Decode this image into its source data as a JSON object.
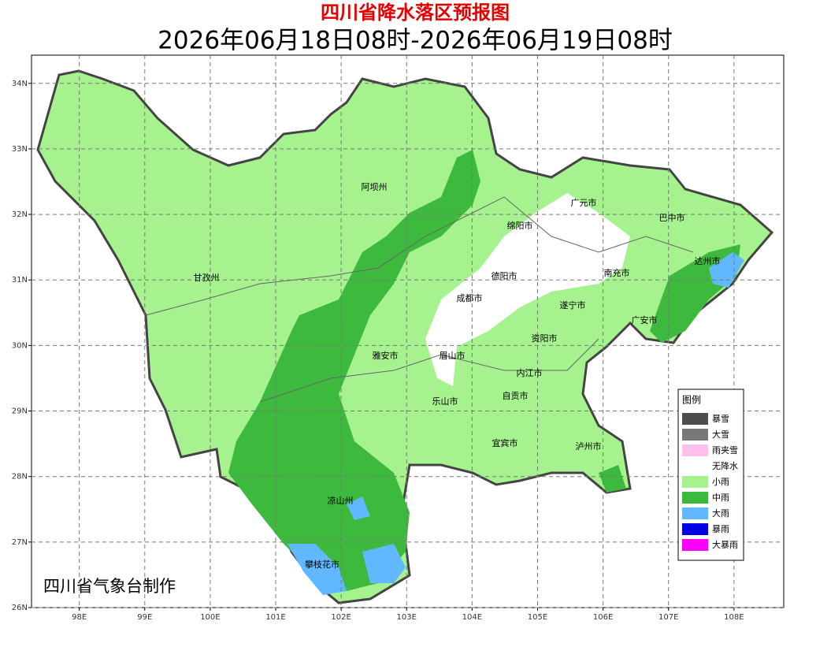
{
  "header": {
    "title": "四川省降水落区预报图",
    "subtitle": "2026年06月18日08时-2026年06月19日08时"
  },
  "map": {
    "xlim": [
      97.27,
      108.76
    ],
    "ylim": [
      26,
      34.43
    ],
    "xticks": [
      {
        "value": 98,
        "label": "98E"
      },
      {
        "value": 99,
        "label": "99E"
      },
      {
        "value": 100,
        "label": "100E"
      },
      {
        "value": 101,
        "label": "101E"
      },
      {
        "value": 102,
        "label": "102E"
      },
      {
        "value": 103,
        "label": "103E"
      },
      {
        "value": 104,
        "label": "104E"
      },
      {
        "value": 105,
        "label": "105E"
      },
      {
        "value": 106,
        "label": "106E"
      },
      {
        "value": 107,
        "label": "107E"
      },
      {
        "value": 108,
        "label": "108E"
      }
    ],
    "yticks": [
      {
        "value": 26,
        "label": "26N"
      },
      {
        "value": 27,
        "label": "27N"
      },
      {
        "value": 28,
        "label": "28N"
      },
      {
        "value": 29,
        "label": "29N"
      },
      {
        "value": 30,
        "label": "30N"
      },
      {
        "value": 31,
        "label": "31N"
      },
      {
        "value": 32,
        "label": "32N"
      },
      {
        "value": 33,
        "label": "33N"
      },
      {
        "value": 34,
        "label": "34N"
      }
    ],
    "grid": true,
    "cities": [
      "阿坝州",
      "甘孜州",
      "广元市",
      "巴中市",
      "绵阳市",
      "达州市",
      "德阳市",
      "南充市",
      "成都市",
      "遂宁市",
      "广安市",
      "资阳市",
      "雅安市",
      "眉山市",
      "内江市",
      "乐山市",
      "自贡市",
      "宜宾市",
      "泸州市",
      "凉山州",
      "攀枝花市"
    ],
    "credit": "四川省气象台制作"
  },
  "legend": {
    "title": "图例",
    "items": [
      {
        "name": "暴雪",
        "color": "#4d4d4d"
      },
      {
        "name": "大雪",
        "color": "#787878"
      },
      {
        "name": "雨夹雪",
        "color": "#ffc0ec"
      },
      {
        "name": "无降水",
        "color": "#ffffff"
      },
      {
        "name": "小雨",
        "color": "#a6f28f"
      },
      {
        "name": "中雨",
        "color": "#3dba3d"
      },
      {
        "name": "大雨",
        "color": "#61b8ff"
      },
      {
        "name": "暴雨",
        "color": "#0000e1"
      },
      {
        "name": "大暴雨",
        "color": "#fa00fa"
      }
    ]
  }
}
